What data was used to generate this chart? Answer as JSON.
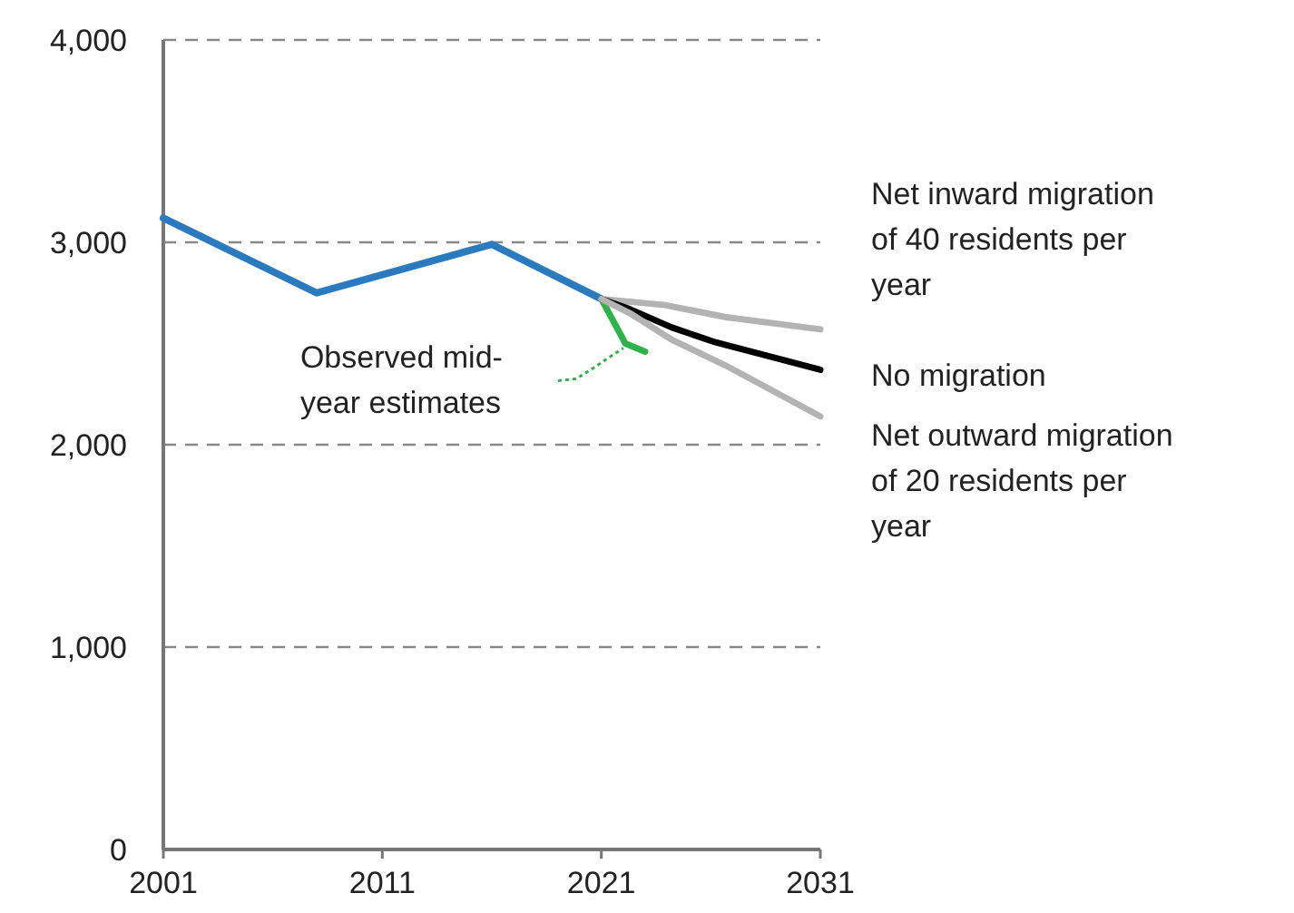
{
  "chart_data": {
    "type": "line",
    "xlim": [
      2001,
      2031
    ],
    "xticks": [
      2001,
      2011,
      2021,
      2031
    ],
    "ylim": [
      0,
      4000
    ],
    "yticks": [
      {
        "value": 0,
        "label": "0"
      },
      {
        "value": 1000,
        "label": "1,000"
      },
      {
        "value": 2000,
        "label": "2,000"
      },
      {
        "value": 3000,
        "label": "3,000"
      },
      {
        "value": 4000,
        "label": "4,000"
      }
    ],
    "grid": "y",
    "marker": "none",
    "line_style": "solid",
    "series": [
      {
        "color": "#2a7ac0",
        "x": [
          2001,
          2008,
          2016,
          2021
        ],
        "values": [
          3120,
          2750,
          2990,
          2720
        ]
      },
      {
        "name": "Observed mid-year estimates",
        "color": "#2db34a",
        "x": [
          2021,
          2022.1,
          2023
        ],
        "values": [
          2720,
          2500,
          2460
        ]
      },
      {
        "name": "Net inward migration of 40 residents per year",
        "color": "#b3b3b3",
        "x": [
          2021,
          2023.9,
          2026.7,
          2031
        ],
        "values": [
          2720,
          2690,
          2630,
          2570
        ]
      },
      {
        "name": "No migration",
        "color": "#000000",
        "x": [
          2021,
          2022.3,
          2024.2,
          2026.1,
          2031
        ],
        "values": [
          2720,
          2670,
          2580,
          2510,
          2370
        ]
      },
      {
        "name": "Net outward migration of 20 residents per year",
        "color": "#b3b3b3",
        "x": [
          2021,
          2022.3,
          2024.2,
          2026.7,
          2031
        ],
        "values": [
          2720,
          2650,
          2520,
          2390,
          2140
        ]
      }
    ]
  }
}
